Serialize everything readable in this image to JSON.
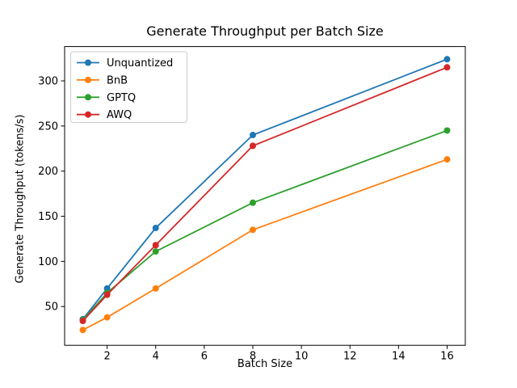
{
  "figure": {
    "background": "#ffffff"
  },
  "chart_data": {
    "type": "line",
    "title": "Generate Throughput per Batch Size",
    "xlabel": "Batch Size",
    "ylabel": "Generate Throughput (tokens/s)",
    "x": [
      1,
      2,
      4,
      8,
      16
    ],
    "series": [
      {
        "name": "Unquantized",
        "color": "#1f77b4",
        "values": [
          36,
          70,
          137,
          240,
          324
        ]
      },
      {
        "name": "BnB",
        "color": "#ff7f0e",
        "values": [
          24,
          38,
          70,
          135,
          213
        ]
      },
      {
        "name": "GPTQ",
        "color": "#2ca02c",
        "values": [
          35,
          65,
          111,
          165,
          245
        ]
      },
      {
        "name": "AWQ",
        "color": "#d62728",
        "values": [
          34,
          63,
          118,
          228,
          315
        ]
      }
    ],
    "xlim": [
      0.25,
      16.75
    ],
    "ylim": [
      7,
      338
    ],
    "xticks": [
      2,
      4,
      6,
      8,
      10,
      12,
      14,
      16
    ],
    "yticks": [
      50,
      100,
      150,
      200,
      250,
      300
    ],
    "grid": false,
    "marker": "o",
    "legend": {
      "position": "upper-left",
      "border_color": "#cccccc",
      "background": "#ffffff"
    },
    "axis_color": "#000000"
  }
}
